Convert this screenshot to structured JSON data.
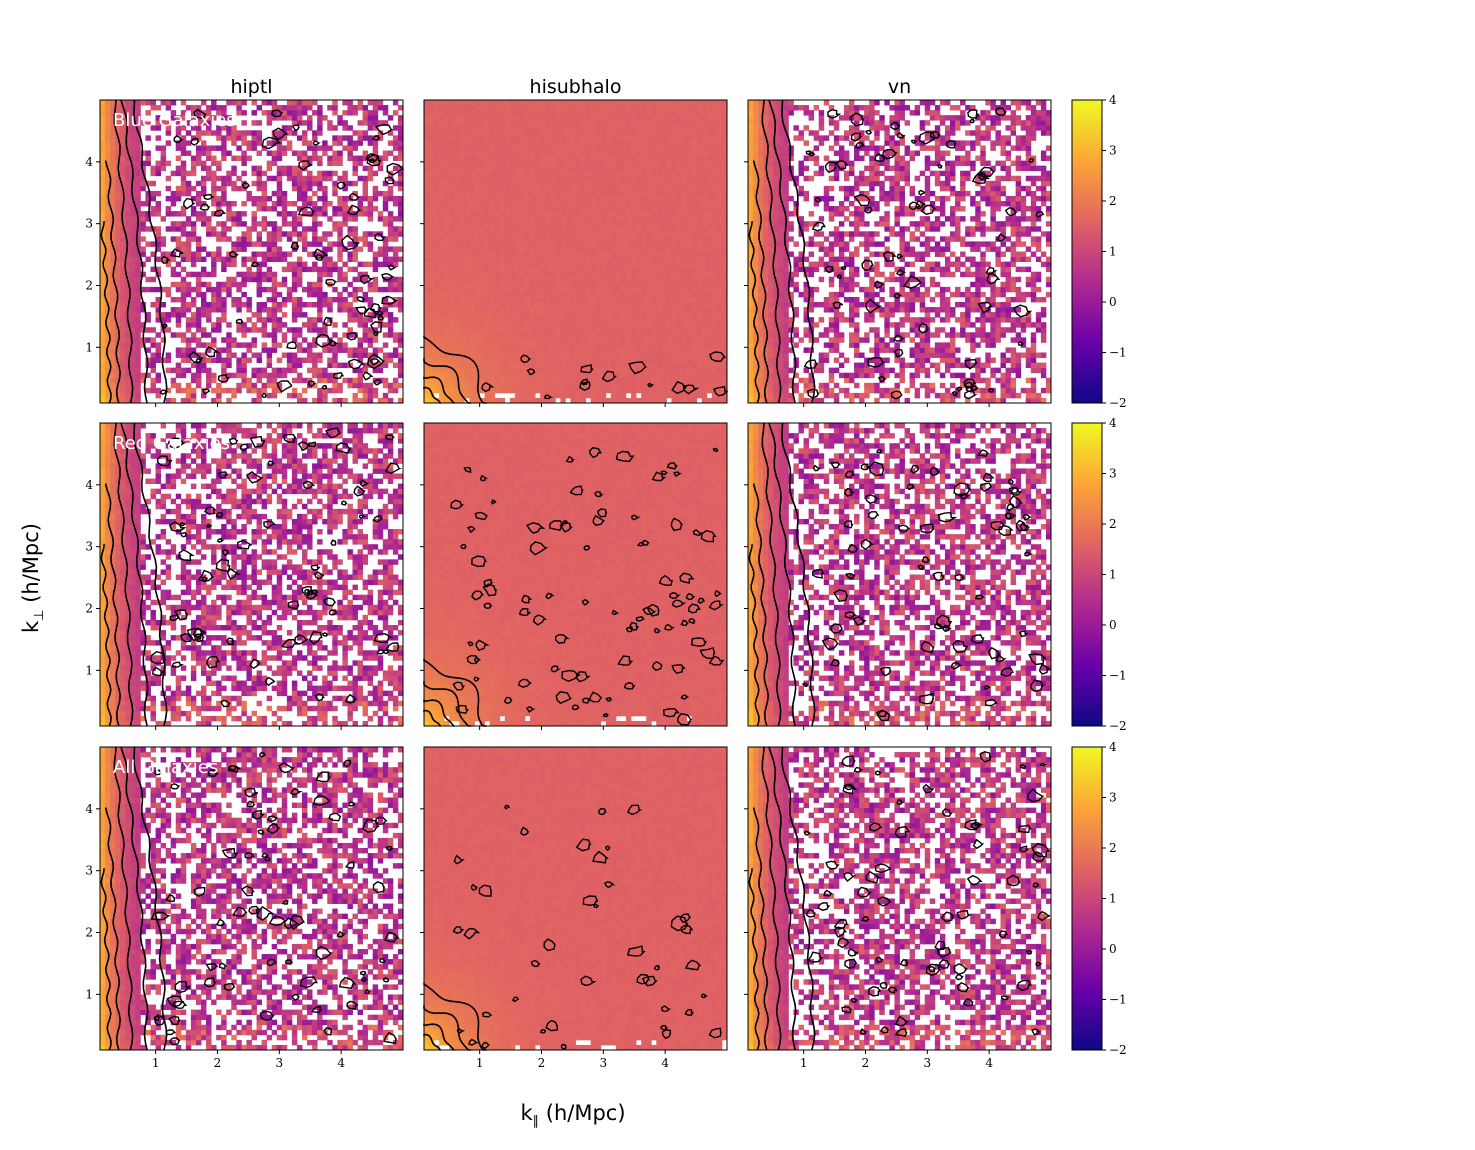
{
  "chart_data": {
    "type": "heatmap",
    "columns": [
      "hiptl",
      "hisubhalo",
      "vn"
    ],
    "rows": [
      "Blue Galaxies",
      "Red Galaxies",
      "All Galaxies"
    ],
    "xlabel": "k",
    "xlabel_sub": "∥",
    "xlabel_unit": " (h/Mpc)",
    "ylabel": "k",
    "ylabel_sub": "⊥",
    "ylabel_unit": " (h/Mpc)",
    "xlim": [
      0.1,
      5.0
    ],
    "ylim": [
      0.1,
      5.0
    ],
    "xticks": [
      "1",
      "2",
      "3",
      "4"
    ],
    "yticks": [
      "1",
      "2",
      "3",
      "4"
    ],
    "colorbar_ticks": [
      "−2",
      "−1",
      "0",
      "1",
      "2",
      "3",
      "4"
    ],
    "clim": [
      -2,
      4
    ],
    "colormap": "plasma",
    "grid": false,
    "contours": true,
    "colormap_stops": [
      "#0d0887",
      "#6a00a8",
      "#b12a90",
      "#e16462",
      "#fca636",
      "#f0f921"
    ]
  }
}
